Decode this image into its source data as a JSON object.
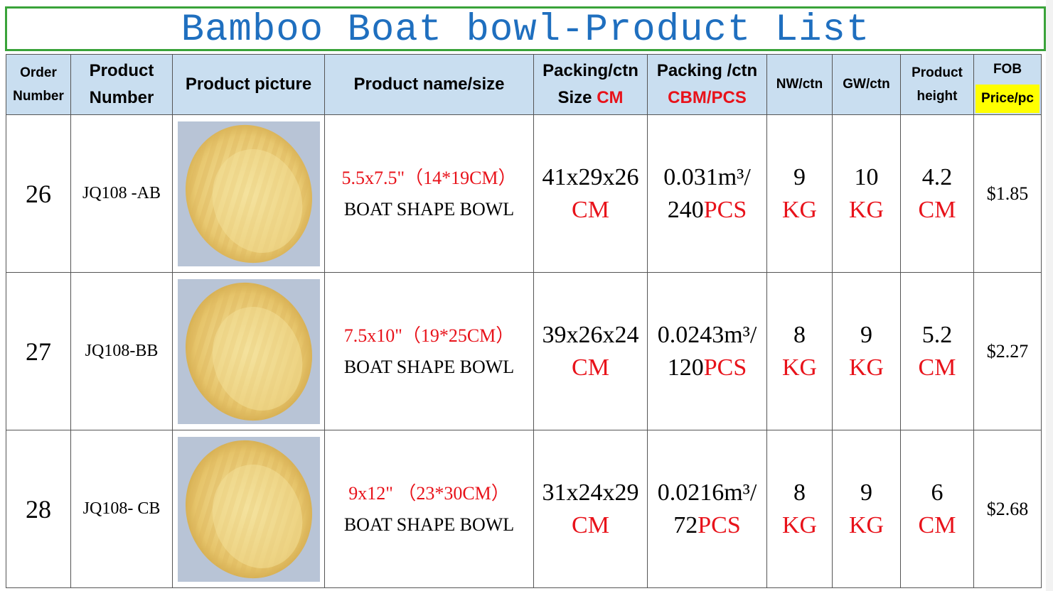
{
  "title": "Bamboo Boat bowl-Product List",
  "headers": {
    "order_number": [
      "Order",
      "Number"
    ],
    "product_number": [
      "Product",
      "Number"
    ],
    "product_picture": "Product picture",
    "product_name_size": "Product name/size",
    "packing_size": {
      "line1": "Packing/ctn",
      "line2": "Size ",
      "unit": "CM"
    },
    "packing_cbm": {
      "line1": "Packing /ctn",
      "line2": "CBM/PCS"
    },
    "nw": "NW/ctn",
    "gw": "GW/ctn",
    "height": [
      "Product",
      "height"
    ],
    "fob": {
      "top": "FOB",
      "bottom": "Price/pc"
    }
  },
  "rows": [
    {
      "order": "26",
      "product_number": "JQ108 -AB",
      "picture_label": "bamboo-boat-bowl-photo",
      "size": "5.5x7.5\"（14*19CM）",
      "desc": "BOAT SHAPE BOWL",
      "packing_dims": "41x29x26",
      "packing_unit": "CM",
      "cbm": "0.031m³/",
      "pcs_qty": "240",
      "pcs_unit": "PCS",
      "nw": "9",
      "nw_unit": "KG",
      "gw": "10",
      "gw_unit": "KG",
      "height": "4.2",
      "height_unit": "CM",
      "price": "$1.85"
    },
    {
      "order": "27",
      "product_number": "JQ108-BB",
      "picture_label": "bamboo-boat-bowl-photo",
      "size": "7.5x10\"（19*25CM）",
      "desc": "BOAT SHAPE BOWL",
      "packing_dims": "39x26x24",
      "packing_unit": "CM",
      "cbm": "0.0243m³/",
      "pcs_qty": "120",
      "pcs_unit": "PCS",
      "nw": "8",
      "nw_unit": "KG",
      "gw": "9",
      "gw_unit": "KG",
      "height": "5.2",
      "height_unit": "CM",
      "price": "$2.27"
    },
    {
      "order": "28",
      "product_number": "JQ108- CB",
      "picture_label": "bamboo-boat-bowl-photo",
      "size": "9x12\" （23*30CM）",
      "desc": "BOAT SHAPE BOWL",
      "packing_dims": "31x24x29",
      "packing_unit": "CM",
      "cbm": "0.0216m³/",
      "pcs_qty": "72",
      "pcs_unit": "PCS",
      "nw": "8",
      "nw_unit": "KG",
      "gw": "9",
      "gw_unit": "KG",
      "height": "6",
      "height_unit": "CM",
      "price": "$2.68"
    }
  ],
  "colors": {
    "title_text": "#1f6fbf",
    "title_border": "#3aa33a",
    "header_bg": "#c9def0",
    "accent_red": "#e8121a",
    "price_highlight": "#ffff00"
  }
}
